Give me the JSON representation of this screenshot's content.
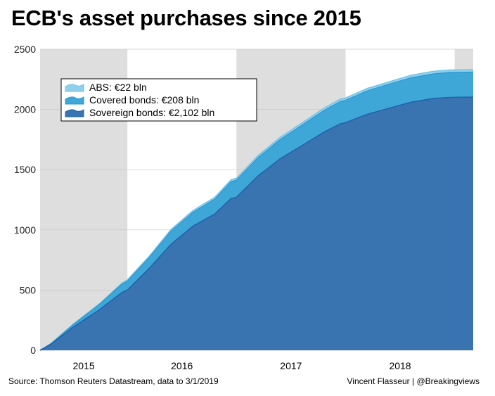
{
  "title": "ECB's asset purchases since 2015",
  "source": "Source: Thomson Reuters Datastream, data to 3/1/2019",
  "credit": "Vincent Flasseur | @Breakingviews",
  "colors": {
    "abs": "#8fd0ec",
    "covered": "#3fa6d8",
    "sovereign": "#3a74b0",
    "sovereign_line": "#1f63ad",
    "covered_line": "#2d97cf",
    "abs_line": "#6cc2e8",
    "shade": "#dedede"
  },
  "chart_data": {
    "type": "area",
    "stacked": true,
    "title": "ECB's asset purchases since 2015",
    "xlabel": "",
    "ylabel": "",
    "ylim": [
      0,
      2500
    ],
    "yticks": [
      0,
      500,
      1000,
      1500,
      2000,
      2500
    ],
    "x_year_labels": [
      "2015",
      "2016",
      "2017",
      "2018"
    ],
    "x": [
      2015.2,
      2015.3,
      2015.5,
      2015.75,
      2015.95,
      2016.0,
      2016.2,
      2016.4,
      2016.6,
      2016.8,
      2016.95,
      2017.0,
      2017.2,
      2017.4,
      2017.6,
      2017.8,
      2017.95,
      2018.0,
      2018.2,
      2018.4,
      2018.6,
      2018.8,
      2018.95,
      2019.17
    ],
    "series": [
      {
        "name": "Sovereign bonds: €2,102 bln",
        "values": [
          0,
          50,
          190,
          340,
          480,
          500,
          680,
          880,
          1030,
          1130,
          1260,
          1270,
          1450,
          1590,
          1700,
          1810,
          1880,
          1890,
          1960,
          2010,
          2060,
          2090,
          2100,
          2102
        ]
      },
      {
        "name": "Covered bonds: €208 bln",
        "values": [
          0,
          5,
          20,
          45,
          70,
          75,
          90,
          110,
          115,
          125,
          140,
          143,
          152,
          160,
          170,
          180,
          185,
          186,
          195,
          200,
          203,
          205,
          207,
          208
        ]
      },
      {
        "name": "ABS: €22 bln",
        "values": [
          0,
          2,
          5,
          7,
          9,
          10,
          12,
          14,
          15,
          16,
          17,
          17,
          18,
          19,
          19,
          20,
          20,
          20,
          21,
          21,
          22,
          22,
          22,
          22
        ]
      }
    ],
    "legend": {
      "placement": "top-left",
      "entries": [
        "ABS: €22 bln",
        "Covered bonds: €208 bln",
        "Sovereign bonds: €2,102 bln"
      ]
    },
    "shaded_years": [
      "2015",
      "2017",
      "2019"
    ],
    "grid": true
  }
}
